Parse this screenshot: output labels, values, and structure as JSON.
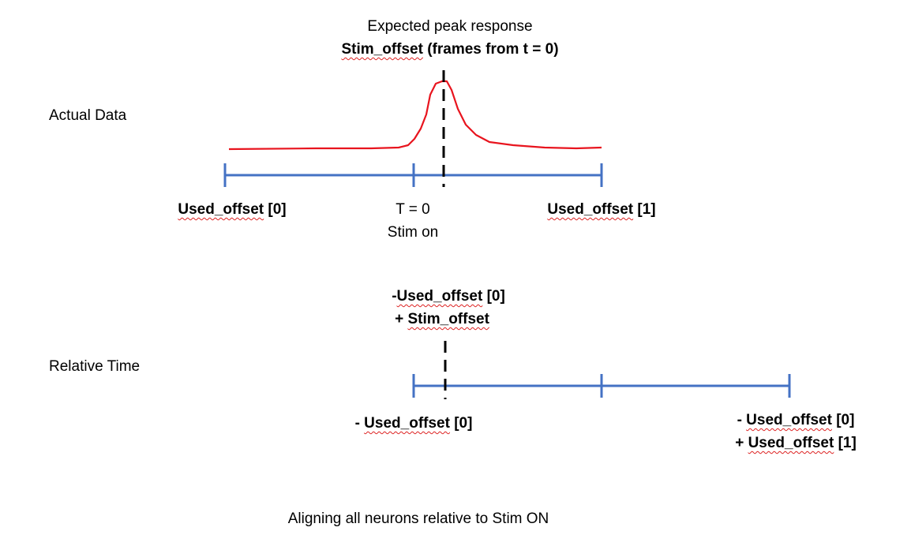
{
  "top": {
    "peak_title": "Expected peak response",
    "peak_subtitle_word": "Stim_offset",
    "peak_subtitle_rest": " (frames from t = 0)",
    "row_label": "Actual Data",
    "left_tick_word": "Used_offset",
    "left_tick_rest": " [0]",
    "t0_line1": "T = 0",
    "t0_line2": "Stim on",
    "right_tick_word": "Used_offset",
    "right_tick_rest": " [1]"
  },
  "bottom": {
    "marker_line1_prefix": "-",
    "marker_line1_word": "Used_offset",
    "marker_line1_rest": " [0]",
    "marker_line2_prefix": "+ ",
    "marker_line2_word": "Stim_offset",
    "row_label": "Relative Time",
    "left_prefix": "- ",
    "left_word": "Used_offset",
    "left_rest": " [0]",
    "right_line1_prefix": "- ",
    "right_line1_word": "Used_offset",
    "right_line1_rest": " [0]",
    "right_line2_prefix": "+ ",
    "right_line2_word": "Used_offset",
    "right_line2_rest": " [1]"
  },
  "caption": "Aligning all neurons relative to Stim ON",
  "colors": {
    "trace": "#e8141e",
    "axis": "#4472c4",
    "marker": "#000000",
    "spellcheck": "#dd2222"
  }
}
